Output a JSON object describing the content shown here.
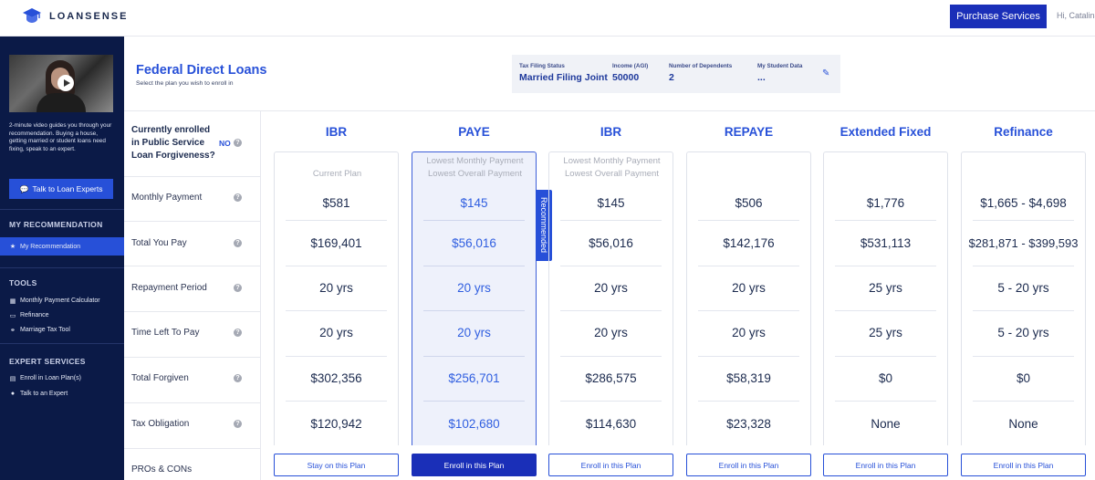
{
  "brand": {
    "name": "LOANSENSE"
  },
  "topbar": {
    "purchase_label": "Purchase Services",
    "greeting": "Hi, Catalina"
  },
  "sidebar": {
    "video_caption": "2-minute video guides you through your recommendation. Buying a house, getting married or student loans need fixing, speak to an expert.",
    "talk_button": "Talk to Loan Experts",
    "my_recommendation_heading": "MY RECOMMENDATION",
    "my_recommendation_item": "My Recommendation",
    "tools_heading": "TOOLS",
    "tools": [
      "Monthly Payment Calculator",
      "Refinance",
      "Marriage Tax Tool"
    ],
    "expert_heading": "EXPERT SERVICES",
    "expert_items": [
      "Enroll in Loan Plan(s)",
      "Talk to an Expert"
    ]
  },
  "header": {
    "title": "Federal Direct Loans",
    "subtitle": "Select the plan you wish to enroll in",
    "tax_status_label": "Tax Filing Status",
    "tax_status_value": "Married Filing Joint",
    "income_label": "Income (AGI)",
    "income_value": "50000",
    "dependents_label": "Number of Dependents",
    "dependents_value": "2",
    "student_data_label": "My Student Data",
    "student_data_value": "..."
  },
  "rows": {
    "pslf_question": "Currently enrolled in Public Service Loan Forgiveness?",
    "pslf_answer": "NO",
    "labels": [
      "Monthly Payment",
      "Total You Pay",
      "Repayment Period",
      "Time Left To Pay",
      "Total Forgiven",
      "Tax Obligation",
      "PROs & CONs"
    ]
  },
  "recommended_label": "Recommended",
  "plans": [
    {
      "name": "IBR",
      "tagline1": "Current Plan",
      "tagline2": "",
      "values": [
        "$581",
        "$169,401",
        "20 yrs",
        "20 yrs",
        "$302,356",
        "$120,942"
      ],
      "button": "Stay on this Plan"
    },
    {
      "name": "PAYE",
      "tagline1": "Lowest Monthly Payment",
      "tagline2": "Lowest Overall Payment",
      "values": [
        "$145",
        "$56,016",
        "20 yrs",
        "20 yrs",
        "$256,701",
        "$102,680"
      ],
      "button": "Enroll in this Plan"
    },
    {
      "name": "IBR",
      "tagline1": "Lowest Monthly Payment",
      "tagline2": "Lowest Overall Payment",
      "values": [
        "$145",
        "$56,016",
        "20 yrs",
        "20 yrs",
        "$286,575",
        "$114,630"
      ],
      "button": "Enroll in this Plan"
    },
    {
      "name": "REPAYE",
      "tagline1": "",
      "tagline2": "",
      "values": [
        "$506",
        "$142,176",
        "20 yrs",
        "20 yrs",
        "$58,319",
        "$23,328"
      ],
      "button": "Enroll in this Plan"
    },
    {
      "name": "Extended Fixed",
      "tagline1": "",
      "tagline2": "",
      "values": [
        "$1,776",
        "$531,113",
        "25 yrs",
        "25 yrs",
        "$0",
        "None"
      ],
      "button": "Enroll in this Plan"
    },
    {
      "name": "Refinance",
      "tagline1": "",
      "tagline2": "",
      "values": [
        "$1,665 - $4,698",
        "$281,871 - $399,593",
        "5 - 20 yrs",
        "5 - 20 yrs",
        "$0",
        "None"
      ],
      "button": "Enroll in this Plan"
    }
  ],
  "colors": {
    "brand_blue": "#2750d8",
    "primary_button": "#1a2fb8",
    "sidebar_bg": "#0b1a47",
    "recommended_bg": "#eef1fb"
  },
  "icons": {
    "logo": "graduation-cap-icon",
    "play": "play-icon",
    "chat": "chat-icon",
    "edit": "edit-icon",
    "help": "question-circle-icon"
  }
}
